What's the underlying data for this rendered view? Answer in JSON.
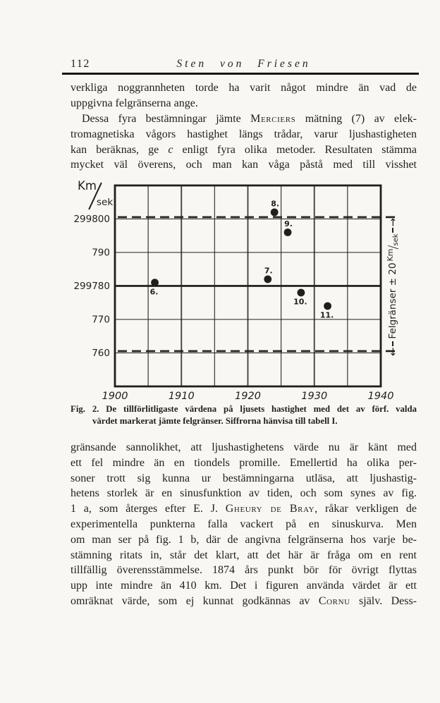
{
  "header": {
    "page_number": "112",
    "running_title": "Sten von Friesen"
  },
  "body": {
    "p1": {
      "lines": [
        "verkliga noggrannheten torde ha varit något mindre än vad de",
        "uppgivna felgränserna ange."
      ]
    },
    "p2": {
      "lines": [
        "Dessa fyra bestämningar jämte [[sc:Merciers]] mätning (7) av elek-",
        "tromagnetiska vågors hastighet längs trådar, varur ljushastigheten",
        "kan beräknas, ge [[i:c]] enligt fyra olika metoder. Resultaten stämma",
        "mycket väl överens, och man kan våga påstå med till visshet"
      ]
    },
    "p3": {
      "lines": [
        "gränsande sannolikhet, att ljushastighetens värde nu är känt med",
        "ett fel mindre än en tiondels promille. Emellertid ha olika per-",
        "soner trott sig kunna ur bestämningarna utläsa, att ljushastig-",
        "hetens storlek är en sinusfunktion av tiden, och som synes av fig.",
        "1 a, som återges efter E. J. [[sc:Gheury de Bray]], råkar verkligen de",
        "experimentella punkterna falla vackert på en sinuskurva. Men",
        "om man ser på fig. 1 b, där de angivna felgränserna hos varje be-",
        "stämning ritats in, står det klart, att det här är fråga om en rent",
        "tillfällig överensstämmelse. 1874 års punkt bör för övrigt flyttas",
        "upp inte mindre än 410 km. Det i figuren använda värdet är ett",
        "omräknat värde, som ej kunnat godkännas av [[sc:Cornu]] själv. Dess-"
      ]
    }
  },
  "figure": {
    "y_unit_top": "Km",
    "y_unit_bottom": "sek",
    "side_label": {
      "arrow_start": "←",
      "text": "Felgränser ± 20",
      "unit_top": "Km",
      "unit_slash": "/",
      "unit_bottom": "sek",
      "arrow_end": "→"
    },
    "caption_line1": "Fig. 2. De tillförlitligaste värdena på ljusets hastighet med det av förf. valda",
    "caption_line2": "värdet markerat jämte felgränser. Siffrorna hänvisa till tabell I."
  },
  "chart_data": {
    "type": "scatter",
    "title": "",
    "xlabel": "",
    "ylabel": "Km/sek",
    "xlim": [
      1900,
      1940
    ],
    "ylim": [
      299750,
      299810
    ],
    "x_grid_step": 5,
    "grid": true,
    "legend": false,
    "x_ticks": [
      {
        "value": 1900,
        "label": "1900"
      },
      {
        "value": 1910,
        "label": "1910"
      },
      {
        "value": 1920,
        "label": "1920"
      },
      {
        "value": 1930,
        "label": "1930"
      },
      {
        "value": 1940,
        "label": "1940"
      }
    ],
    "y_axis": [
      {
        "value": 299800,
        "label": "299800",
        "style": "dashed"
      },
      {
        "value": 299790,
        "label": "790",
        "style": "solid"
      },
      {
        "value": 299780,
        "label": "299780",
        "style": "emphasis"
      },
      {
        "value": 299770,
        "label": "770",
        "style": "solid"
      },
      {
        "value": 299760,
        "label": "760",
        "style": "dashed"
      }
    ],
    "points": [
      {
        "label": "6.",
        "year": 1906,
        "value": 299781,
        "label_pos": "below"
      },
      {
        "label": "7.",
        "year": 1923,
        "value": 299782,
        "label_pos": "above"
      },
      {
        "label": "8.",
        "year": 1924,
        "value": 299802,
        "label_pos": "above"
      },
      {
        "label": "9.",
        "year": 1926,
        "value": 299796,
        "label_pos": "above"
      },
      {
        "label": "10.",
        "year": 1928,
        "value": 299778,
        "label_pos": "below"
      },
      {
        "label": "11.",
        "year": 1932,
        "value": 299774,
        "label_pos": "below"
      }
    ],
    "chosen_value_line": 299780,
    "error_bound_lines": [
      299800,
      299760
    ],
    "side_annotation": "Felgränser ± 20 Km/sek"
  }
}
